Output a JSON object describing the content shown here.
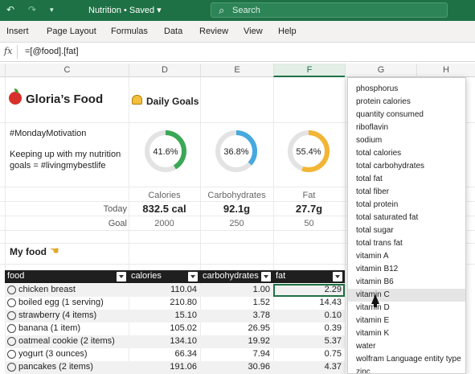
{
  "titlebar": {
    "document_title": "Nutrition • Saved ▾",
    "search_placeholder": "Search",
    "icons": [
      "waffle-icon",
      "undo-icon",
      "redo-icon",
      "customize-icon",
      "search-icon"
    ]
  },
  "menu": {
    "items": [
      "Insert",
      "Page Layout",
      "Formulas",
      "Data",
      "Review",
      "View",
      "Help"
    ]
  },
  "formula_bar": {
    "fx_label": "fx",
    "formula": "=[@food].[fat]"
  },
  "columns": [
    "C",
    "D",
    "E",
    "F",
    "G",
    "H"
  ],
  "selected_column": "F",
  "sheet": {
    "title": "Gloria’s Food",
    "daily_goals": "Daily Goals",
    "motivation": "#MondayMotivation",
    "description_line1": "Keeping up with my nutrition",
    "description_line2": "goals = #livingmybestlife",
    "rings": [
      {
        "label": "41.6%",
        "percent": 41.6,
        "color": "#3aa856"
      },
      {
        "label": "36.8%",
        "percent": 36.8,
        "color": "#46a9e0"
      },
      {
        "label": "55.4%",
        "percent": 55.4,
        "color": "#f2b534"
      }
    ],
    "metric_headers": [
      "Calories",
      "Carbohydrates",
      "Fat"
    ],
    "today_label": "Today",
    "goal_label": "Goal",
    "today_values": [
      "832.5 cal",
      "92.1g",
      "27.7g"
    ],
    "goal_values": [
      "2000",
      "250",
      "50"
    ],
    "my_food": "My food"
  },
  "table": {
    "headers": [
      "food",
      "calories",
      "carbohydrates",
      "fat"
    ],
    "rows": [
      {
        "food": "chicken breast",
        "calories": "110.04",
        "carbohydrates": "1.00",
        "fat": "2.29"
      },
      {
        "food": "boiled egg (1 serving)",
        "calories": "210.80",
        "carbohydrates": "1.52",
        "fat": "14.43"
      },
      {
        "food": "strawberry (4 items)",
        "calories": "15.10",
        "carbohydrates": "3.78",
        "fat": "0.10"
      },
      {
        "food": "banana (1 item)",
        "calories": "105.02",
        "carbohydrates": "26.95",
        "fat": "0.39"
      },
      {
        "food": "oatmeal cookie (2 items)",
        "calories": "134.10",
        "carbohydrates": "19.92",
        "fat": "5.37"
      },
      {
        "food": "yogurt (3 ounces)",
        "calories": "66.34",
        "carbohydrates": "7.94",
        "fat": "0.75"
      },
      {
        "food": "pancakes (2 items)",
        "calories": "191.06",
        "carbohydrates": "30.96",
        "fat": "4.37"
      }
    ]
  },
  "dropdown": {
    "items": [
      "phosphorus",
      "protein calories",
      "quantity consumed",
      "riboflavin",
      "sodium",
      "total calories",
      "total carbohydrates",
      "total fat",
      "total fiber",
      "total protein",
      "total saturated fat",
      "total sugar",
      "total trans fat",
      "vitamin A",
      "vitamin B12",
      "vitamin B6",
      "vitamin C",
      "vitamin D",
      "vitamin E",
      "vitamin K",
      "water",
      "wolfram Language entity type",
      "zinc"
    ],
    "highlighted": "vitamin C"
  },
  "colors": {
    "brand": "#1e7145",
    "table_header": "#1f1f1f"
  }
}
